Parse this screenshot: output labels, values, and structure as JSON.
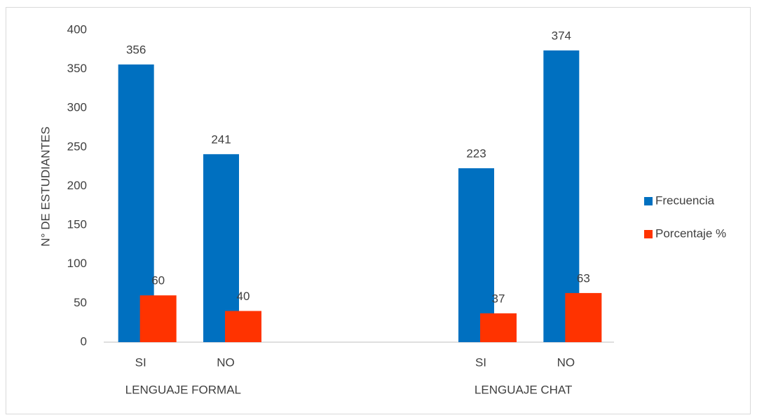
{
  "chart_data": {
    "type": "bar",
    "categories": [
      "SI",
      "NO",
      null,
      null,
      "SI",
      "NO"
    ],
    "group_labels": [
      "LENGUAJE  FORMAL",
      "LENGUAJE  CHAT"
    ],
    "series": [
      {
        "name": "Frecuencia",
        "color": "#0070c0",
        "values": [
          356,
          241,
          null,
          null,
          223,
          374
        ]
      },
      {
        "name": "Porcentaje %",
        "color": "#ff3300",
        "values": [
          60,
          40,
          null,
          null,
          37,
          63
        ]
      }
    ],
    "y_label": "N°  DE ESTUDIANTES",
    "ylim": [
      0,
      400
    ],
    "yticks": [
      0,
      50,
      100,
      150,
      200,
      250,
      300,
      350,
      400
    ],
    "grid": false,
    "legend": "right"
  }
}
